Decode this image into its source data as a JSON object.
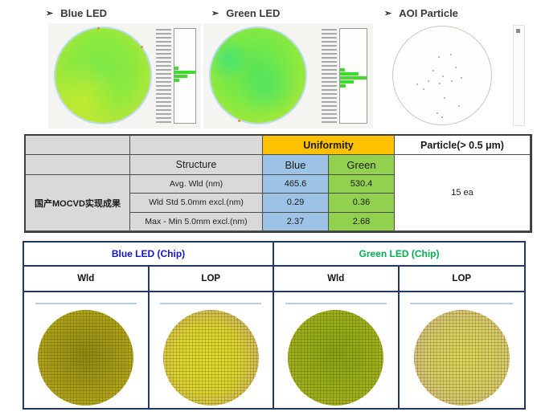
{
  "top": {
    "sections": [
      {
        "bullet": "➢",
        "label": "Blue LED"
      },
      {
        "bullet": "➢",
        "label": "Green LED"
      },
      {
        "bullet": "➢",
        "label": "AOI Particle"
      }
    ],
    "blue_hist_bars": [
      0.2,
      1.0,
      0.62,
      0.22
    ],
    "green_hist_bars": [
      0.18,
      0.7,
      1.0,
      0.5,
      0.2
    ],
    "particle_dots": [
      [
        0.46,
        0.3
      ],
      [
        0.58,
        0.28
      ],
      [
        0.4,
        0.44
      ],
      [
        0.63,
        0.41
      ],
      [
        0.5,
        0.5
      ],
      [
        0.35,
        0.55
      ],
      [
        0.24,
        0.58
      ],
      [
        0.47,
        0.57
      ],
      [
        0.59,
        0.55
      ],
      [
        0.69,
        0.52
      ],
      [
        0.3,
        0.63
      ],
      [
        0.52,
        0.72
      ],
      [
        0.44,
        0.88
      ],
      [
        0.49,
        0.92
      ],
      [
        0.66,
        0.8
      ]
    ]
  },
  "summary_table": {
    "row_label": "国产MOCVD实现成果",
    "structure_header": "Structure",
    "uniformity_header": "Uniformity",
    "particle_header": "Particle(> 0.5 μm)",
    "col_blue": "Blue",
    "col_green": "Green",
    "rows": [
      {
        "metric": "Avg. Wld (nm)",
        "blue": "465.6",
        "green": "530.4"
      },
      {
        "metric": "Wld Std 5.0mm excl.(nm)",
        "blue": "0.29",
        "green": "0.36"
      },
      {
        "metric": "Max - Min 5.0mm excl.(nm)",
        "blue": "2.37",
        "green": "2.68"
      }
    ],
    "particle_value": "15 ea",
    "colors": {
      "uniformity_bg": "#FFC000",
      "blue_bg": "#9DC3E6",
      "green_bg": "#92D050",
      "gray_bg": "#D9D9D9"
    }
  },
  "chip_table": {
    "blue_group": "Blue LED (Chip)",
    "green_group": "Green LED (Chip)",
    "col_headers": [
      "Wld",
      "LOP",
      "Wld",
      "LOP"
    ],
    "colors": {
      "border": "#1F3864",
      "blue_text": "#1414CC",
      "green_text": "#00B050"
    }
  }
}
